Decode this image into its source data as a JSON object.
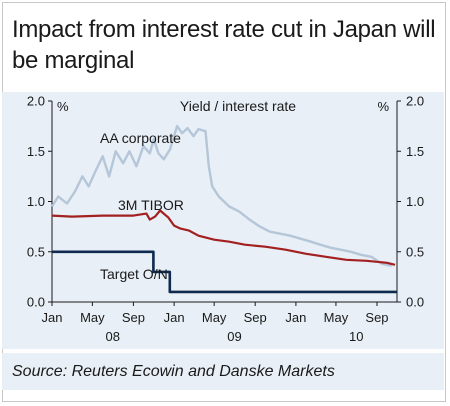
{
  "title": "Impact from interest rate cut in Japan will be marginal",
  "source": "Source: Reuters Ecowin and Danske Markets",
  "chart_data": {
    "type": "line",
    "subtitle": "Yield / interest rate",
    "left_unit": "%",
    "right_unit": "%",
    "ylim": [
      0.0,
      2.0
    ],
    "yticks": [
      "0.0",
      "0.5",
      "1.0",
      "1.5",
      "2.0"
    ],
    "xlim": [
      "2008-01-01",
      "2010-10-31"
    ],
    "xticks": [
      {
        "label": "Jan",
        "date": "2008-01-01"
      },
      {
        "label": "May",
        "date": "2008-05-01"
      },
      {
        "label": "Sep",
        "date": "2008-09-01"
      },
      {
        "label": "Jan",
        "date": "2009-01-01"
      },
      {
        "label": "May",
        "date": "2009-05-01"
      },
      {
        "label": "Sep",
        "date": "2009-09-01"
      },
      {
        "label": "Jan",
        "date": "2010-01-01"
      },
      {
        "label": "May",
        "date": "2010-05-01"
      },
      {
        "label": "Sep",
        "date": "2010-09-01"
      }
    ],
    "year_labels": [
      {
        "label": "08",
        "date": "2008-07-01"
      },
      {
        "label": "09",
        "date": "2009-07-01"
      },
      {
        "label": "10",
        "date": "2010-07-01"
      }
    ],
    "grid": false,
    "series": [
      {
        "name": "AA corporate",
        "color": "#b4c6d8",
        "step": false,
        "x": [
          "2008-01-01",
          "2008-01-20",
          "2008-02-15",
          "2008-03-10",
          "2008-04-01",
          "2008-04-20",
          "2008-05-10",
          "2008-06-01",
          "2008-06-20",
          "2008-07-10",
          "2008-08-01",
          "2008-08-20",
          "2008-09-10",
          "2008-10-01",
          "2008-10-20",
          "2008-11-01",
          "2008-11-15",
          "2008-12-01",
          "2008-12-20",
          "2009-01-10",
          "2009-01-25",
          "2009-02-10",
          "2009-02-28",
          "2009-03-15",
          "2009-04-05",
          "2009-04-15",
          "2009-04-25",
          "2009-05-15",
          "2009-06-15",
          "2009-07-15",
          "2009-08-15",
          "2009-09-15",
          "2009-10-15",
          "2009-11-15",
          "2009-12-15",
          "2010-01-15",
          "2010-02-15",
          "2010-03-15",
          "2010-04-15",
          "2010-05-15",
          "2010-06-15",
          "2010-07-15",
          "2010-08-15",
          "2010-09-15",
          "2010-10-15"
        ],
        "y": [
          0.95,
          1.05,
          0.98,
          1.1,
          1.25,
          1.15,
          1.3,
          1.45,
          1.25,
          1.5,
          1.38,
          1.5,
          1.35,
          1.55,
          1.48,
          1.62,
          1.48,
          1.42,
          1.52,
          1.75,
          1.68,
          1.73,
          1.65,
          1.72,
          1.7,
          1.35,
          1.15,
          1.05,
          0.95,
          0.9,
          0.82,
          0.75,
          0.7,
          0.68,
          0.66,
          0.63,
          0.6,
          0.57,
          0.54,
          0.52,
          0.5,
          0.47,
          0.45,
          0.38,
          0.36
        ]
      },
      {
        "name": "3M TIBOR",
        "color": "#a32020",
        "step": false,
        "x": [
          "2008-01-01",
          "2008-03-01",
          "2008-06-01",
          "2008-09-01",
          "2008-10-10",
          "2008-10-20",
          "2008-11-05",
          "2008-11-20",
          "2008-12-15",
          "2009-01-01",
          "2009-01-20",
          "2009-02-15",
          "2009-03-15",
          "2009-05-01",
          "2009-06-15",
          "2009-08-01",
          "2009-10-01",
          "2009-12-01",
          "2010-02-01",
          "2010-04-01",
          "2010-06-01",
          "2010-08-01",
          "2010-10-01",
          "2010-10-25"
        ],
        "y": [
          0.86,
          0.85,
          0.86,
          0.86,
          0.88,
          0.82,
          0.85,
          0.91,
          0.84,
          0.76,
          0.73,
          0.71,
          0.66,
          0.62,
          0.6,
          0.57,
          0.55,
          0.52,
          0.48,
          0.45,
          0.42,
          0.41,
          0.39,
          0.37
        ]
      },
      {
        "name": "Target O/N",
        "color": "#0e2a4e",
        "step": true,
        "x": [
          "2008-01-01",
          "2008-10-31",
          "2008-12-19",
          "2010-10-31"
        ],
        "y": [
          0.5,
          0.3,
          0.1,
          0.1
        ]
      }
    ]
  }
}
